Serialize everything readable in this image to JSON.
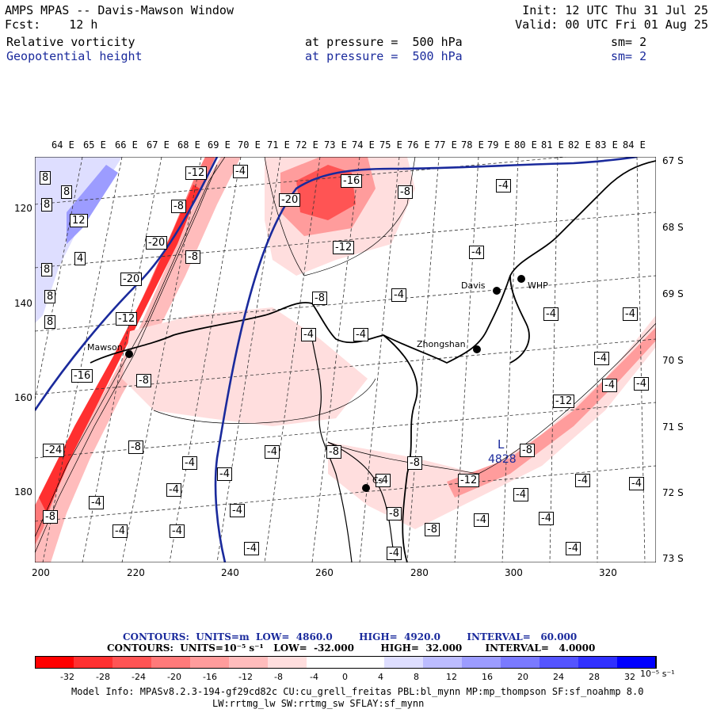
{
  "header": {
    "title": "AMPS MPAS -- Davis-Mawson Window",
    "fcst": "Fcst:    12 h",
    "init": "Init: 12 UTC Thu 31 Jul 25",
    "valid": "Valid: 00 UTC Fri 01 Aug 25",
    "field1": {
      "name": "Relative vorticity",
      "pressure": "at pressure =  500 hPa",
      "sm": "sm= 2"
    },
    "field2": {
      "name": "Geopotential height",
      "pressure": "at pressure =  500 hPa",
      "sm": "sm= 2"
    }
  },
  "top_labels": [
    "64 E",
    "65 E",
    "66 E",
    "67 E",
    "68 E",
    "69 E",
    "70 E",
    "71 E",
    "72 E",
    "73 E",
    "74 E",
    "75 E",
    "76 E",
    "77 E",
    "78 E",
    "79 E",
    "80 E",
    "81 E",
    "82 E",
    "83 E",
    "84 E"
  ],
  "right_labels": [
    "67 S",
    "68 S",
    "69 S",
    "70 S",
    "71 S",
    "72 S",
    "73 S"
  ],
  "y_labels": [
    "120",
    "140",
    "160",
    "180"
  ],
  "x_labels": [
    "200",
    "220",
    "240",
    "260",
    "280",
    "300",
    "320"
  ],
  "stations": [
    {
      "name": "Davis"
    },
    {
      "name": "WHP"
    },
    {
      "name": "Mawson"
    },
    {
      "name": "Zhongshan"
    },
    {
      "name": "Cs"
    }
  ],
  "contour_labels": [
    "8",
    "8",
    "8",
    "12",
    "4",
    "8",
    "8",
    "8",
    "-12",
    "-8",
    "-20",
    "-20",
    "-12",
    "-16",
    "-24",
    "-8",
    "-4",
    "-20",
    "-16",
    "-8",
    "-8",
    "-12",
    "-8",
    "-4",
    "-4",
    "-4",
    "-4",
    "-8",
    "-4",
    "-4",
    "-4",
    "-8",
    "-8",
    "-4",
    "-4",
    "-4",
    "-4",
    "-4",
    "-4",
    "-8",
    "-8",
    "-12",
    "-8",
    "-12",
    "-4",
    "-4",
    "-4",
    "-4",
    "-4",
    "-4",
    "-4",
    "-4",
    "-4",
    "-4",
    "-8",
    "-4",
    "-4",
    "-4",
    "-4"
  ],
  "low_label": "L",
  "low_value": "4828",
  "contours_info": {
    "line1": "CONTOURS:  UNITS=m  LOW=  4860.0        HIGH=  4920.0        INTERVAL=   60.000",
    "line2": "CONTOURS:  UNITS=10⁻⁵ s⁻¹   LOW=  -32.000        HIGH=  32.000       INTERVAL=   4.0000"
  },
  "colorbar": {
    "colors": [
      "#ff0000",
      "#ff3030",
      "#ff5454",
      "#ff7a7a",
      "#ff9c9c",
      "#ffbcbc",
      "#ffdede",
      "#ffffff",
      "#ffffff",
      "#dedeff",
      "#bcbcff",
      "#9c9cff",
      "#7a7aff",
      "#5454ff",
      "#3030ff",
      "#0000ff"
    ],
    "labels": [
      "-32",
      "-28",
      "-24",
      "-20",
      "-16",
      "-12",
      "-8",
      "-4",
      "0",
      "4",
      "8",
      "12",
      "16",
      "20",
      "24",
      "28",
      "32"
    ],
    "units": "10⁻⁵ s⁻¹"
  },
  "model_info": {
    "line1": "Model Info: MPASv8.2.3-194-gf29cd82c CU:cu_grell_freitas PBL:bl_mynn MP:mp_thompson SF:sf_noahmp 8.0",
    "line2": "LW:rrtmg_lw SW:rrtmg_sw SFLAY:sf_mynn"
  }
}
